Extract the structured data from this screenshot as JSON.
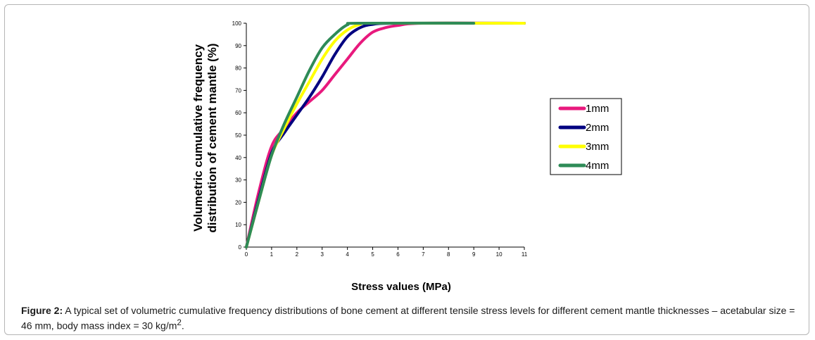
{
  "chart_data": {
    "type": "line",
    "xlabel": "Stress values (MPa)",
    "ylabel_lines": [
      "Volumetric cumulative frequency",
      "distribution of cement mantle (%)"
    ],
    "xlim": [
      0,
      11
    ],
    "ylim": [
      0,
      100
    ],
    "x_ticks": [
      "0",
      "1",
      "2",
      "3",
      "4",
      "5",
      "6",
      "7",
      "8",
      "9",
      "10",
      "11"
    ],
    "y_ticks": [
      "0",
      "10",
      "20",
      "30",
      "40",
      "50",
      "60",
      "70",
      "80",
      "90",
      "100"
    ],
    "grid": false,
    "legend_position": "right",
    "series": [
      {
        "name": "1mm",
        "color": "#e8197d",
        "points": [
          [
            0,
            0
          ],
          [
            0.5,
            25
          ],
          [
            1,
            45
          ],
          [
            1.5,
            53
          ],
          [
            2,
            60
          ],
          [
            2.5,
            65
          ],
          [
            3,
            70
          ],
          [
            3.5,
            77
          ],
          [
            4,
            84
          ],
          [
            4.5,
            91
          ],
          [
            5,
            96
          ],
          [
            5.5,
            98
          ],
          [
            6,
            99
          ],
          [
            7,
            100
          ],
          [
            11,
            100
          ]
        ]
      },
      {
        "name": "2mm",
        "color": "#000080",
        "points": [
          [
            0,
            0
          ],
          [
            0.5,
            22
          ],
          [
            1,
            42
          ],
          [
            1.5,
            51
          ],
          [
            2,
            59
          ],
          [
            2.5,
            67
          ],
          [
            3,
            76
          ],
          [
            3.5,
            86
          ],
          [
            4,
            94
          ],
          [
            4.5,
            98
          ],
          [
            5,
            99.5
          ],
          [
            6,
            100
          ],
          [
            11,
            100
          ]
        ]
      },
      {
        "name": "3mm",
        "color": "#ffff00",
        "points": [
          [
            0,
            0
          ],
          [
            0.5,
            21
          ],
          [
            1,
            41
          ],
          [
            1.5,
            53
          ],
          [
            2,
            64
          ],
          [
            2.5,
            74
          ],
          [
            3,
            84
          ],
          [
            3.5,
            92
          ],
          [
            4,
            97
          ],
          [
            4.5,
            99.5
          ],
          [
            5,
            100
          ],
          [
            11,
            100
          ]
        ]
      },
      {
        "name": "4mm",
        "color": "#2e8b57",
        "points": [
          [
            0,
            0
          ],
          [
            0.5,
            21
          ],
          [
            1,
            41
          ],
          [
            1.5,
            55
          ],
          [
            2,
            67
          ],
          [
            2.5,
            79
          ],
          [
            3,
            89
          ],
          [
            3.5,
            95
          ],
          [
            4,
            99.3
          ],
          [
            4.5,
            100
          ],
          [
            9,
            100
          ]
        ]
      }
    ]
  },
  "caption": {
    "label": "Figure 2:",
    "text": "A typical set of volumetric cumulative frequency distributions of bone cement at different tensile stress levels for different cement mantle thicknesses – acetabular size = 46 mm, body mass index = 30 kg/m",
    "superscript": "2",
    "tail": "."
  }
}
